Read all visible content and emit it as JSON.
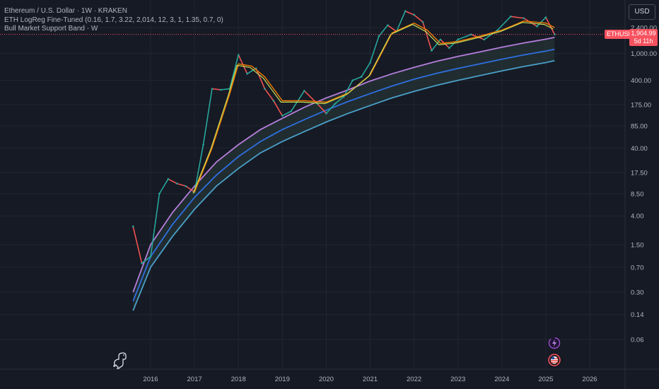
{
  "legend": {
    "symbol": "Ethereum / U.S. Dollar · 1W · KRAKEN",
    "indicator1": "ETH LogReg Fine-Tuned (0.16, 1.7, 3.22, 2,014, 12, 3, 1, 1.35, 0.7, 0)",
    "indicator2": "Bull Market Support Band · W"
  },
  "currency": "USD",
  "price_tag": {
    "symbol": "ETHUSD",
    "price": "1,904.99",
    "countdown": "5d 11h"
  },
  "colors": {
    "background": "#161a25",
    "grid": "#222631",
    "axis_text": "#b2b5be",
    "band_top": "#b57edc",
    "band_mid": "#2f6fe0",
    "band_low": "#4a9fc8",
    "band_fill": "#2a3c3a",
    "candle_up": "#26a69a",
    "candle_down": "#ef5350",
    "sma": "#f57c00",
    "ema": "#c8e05a",
    "price_line": "#f7525f"
  },
  "icons": [
    "trading-view-dino-icon",
    "lightning-event-icon",
    "us-flag-event-icon"
  ],
  "chart_data": {
    "type": "line",
    "title": "Ethereum / U.S. Dollar · 1W · KRAKEN",
    "y_scale": "log",
    "y_ticks": [
      "2,400.00",
      "1,000.00",
      "400.00",
      "175.00",
      "85.00",
      "40.00",
      "17.50",
      "8.50",
      "4.00",
      "1.50",
      "0.70",
      "0.30",
      "0.14",
      "0.06"
    ],
    "x_ticks": [
      "2016",
      "2017",
      "2018",
      "2019",
      "2020",
      "2021",
      "2022",
      "2023",
      "2024",
      "2025",
      "2026"
    ],
    "last_price": 1904.99,
    "series": [
      {
        "role": "price",
        "x": [
          2015.6,
          2015.8,
          2016.0,
          2016.2,
          2016.4,
          2016.6,
          2016.8,
          2017.0,
          2017.2,
          2017.4,
          2017.6,
          2017.8,
          2018.0,
          2018.2,
          2018.4,
          2018.6,
          2018.8,
          2019.0,
          2019.2,
          2019.5,
          2019.8,
          2020.0,
          2020.2,
          2020.4,
          2020.6,
          2020.8,
          2021.0,
          2021.2,
          2021.4,
          2021.6,
          2021.8,
          2022.0,
          2022.2,
          2022.4,
          2022.6,
          2022.8,
          2023.0,
          2023.3,
          2023.6,
          2023.9,
          2024.2,
          2024.5,
          2024.8,
          2025.0,
          2025.2
        ],
        "y": [
          2.8,
          0.8,
          1.0,
          8.5,
          14,
          12,
          11,
          9,
          45,
          300,
          290,
          300,
          950,
          500,
          600,
          300,
          200,
          120,
          140,
          280,
          180,
          130,
          180,
          230,
          400,
          450,
          730,
          1800,
          2600,
          2100,
          4200,
          3700,
          2900,
          1100,
          1600,
          1200,
          1600,
          1900,
          1600,
          2200,
          3500,
          3300,
          2500,
          3400,
          1905
        ]
      },
      {
        "role": "bull-market-support-band",
        "x": [
          2017.0,
          2017.4,
          2017.8,
          2018.0,
          2018.3,
          2018.6,
          2019.0,
          2019.5,
          2020.0,
          2020.5,
          2021.0,
          2021.5,
          2022.0,
          2022.3,
          2022.6,
          2023.0,
          2023.5,
          2024.0,
          2024.5,
          2025.0,
          2025.2
        ],
        "y": [
          9,
          40,
          250,
          700,
          650,
          450,
          200,
          200,
          190,
          260,
          480,
          2000,
          2800,
          2200,
          1400,
          1500,
          1800,
          2200,
          3000,
          2800,
          2400
        ]
      },
      {
        "role": "logreg-top",
        "x": [
          2015.6,
          2016.0,
          2016.5,
          2017.0,
          2017.5,
          2018.0,
          2018.5,
          2019.0,
          2019.5,
          2020.0,
          2020.5,
          2021.0,
          2021.5,
          2022.0,
          2022.5,
          2023.0,
          2023.5,
          2024.0,
          2024.5,
          2025.0,
          2025.2
        ],
        "y": [
          0.3,
          1.5,
          4.5,
          11,
          25,
          45,
          75,
          110,
          160,
          220,
          290,
          390,
          500,
          620,
          760,
          900,
          1050,
          1230,
          1420,
          1620,
          1720
        ]
      },
      {
        "role": "logreg-mid",
        "x": [
          2015.6,
          2016.0,
          2016.5,
          2017.0,
          2017.5,
          2018.0,
          2018.5,
          2019.0,
          2019.5,
          2020.0,
          2020.5,
          2021.0,
          2021.5,
          2022.0,
          2022.5,
          2023.0,
          2023.5,
          2024.0,
          2024.5,
          2025.0,
          2025.2
        ],
        "y": [
          0.22,
          1.0,
          3.0,
          7.5,
          16,
          30,
          50,
          75,
          105,
          145,
          195,
          255,
          330,
          415,
          505,
          600,
          700,
          820,
          950,
          1080,
          1150
        ]
      },
      {
        "role": "logreg-low",
        "x": [
          2015.6,
          2016.0,
          2016.5,
          2017.0,
          2017.5,
          2018.0,
          2018.5,
          2019.0,
          2019.5,
          2020.0,
          2020.5,
          2021.0,
          2021.5,
          2022.0,
          2022.5,
          2023.0,
          2023.5,
          2024.0,
          2024.5,
          2025.0,
          2025.2
        ],
        "y": [
          0.16,
          0.7,
          2.0,
          5.0,
          11,
          20,
          34,
          50,
          70,
          97,
          130,
          170,
          220,
          275,
          335,
          400,
          470,
          550,
          640,
          730,
          780
        ]
      }
    ]
  }
}
